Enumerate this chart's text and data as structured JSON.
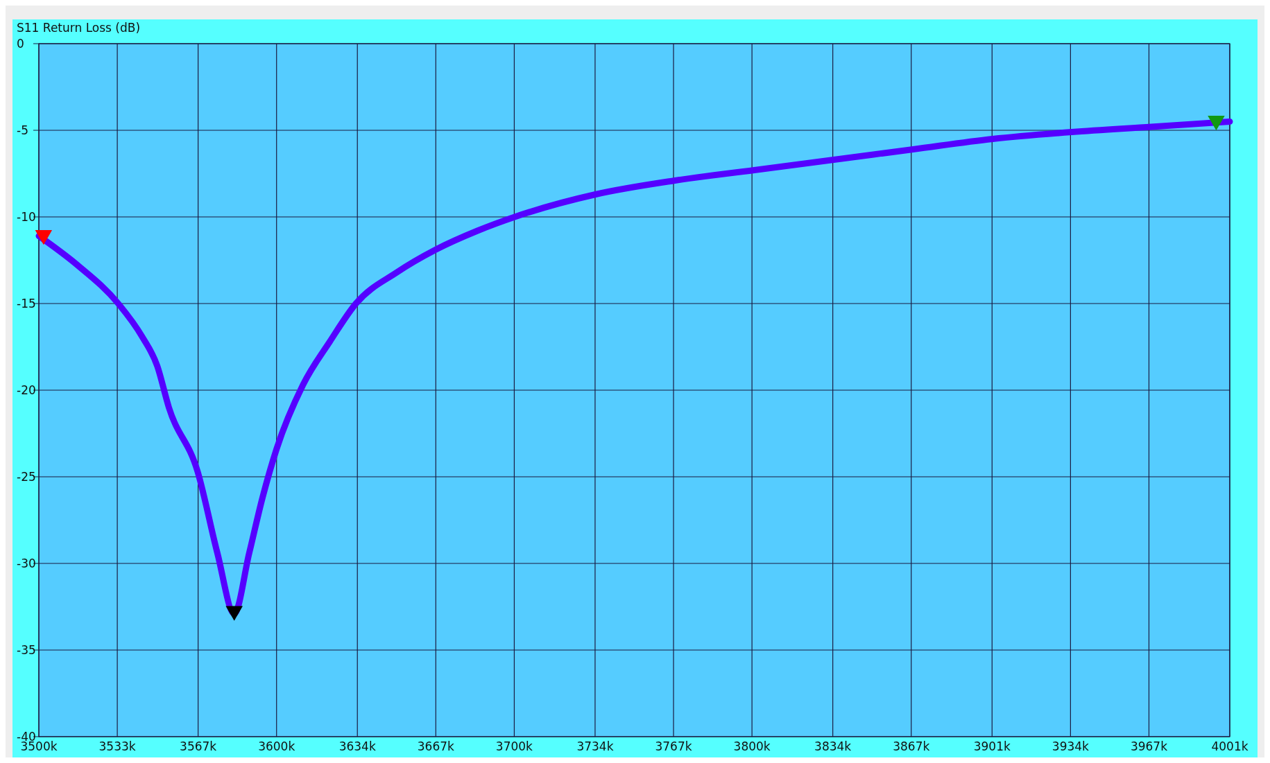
{
  "chart_data": {
    "type": "line",
    "title": "S11 Return Loss (dB)",
    "series": [
      {
        "color": "#5500ff",
        "x": [
          3500,
          3516.4,
          3533.4,
          3543.4,
          3549.8,
          3554.7,
          3566.8,
          3575.1,
          3582.2,
          3588.5,
          3594.1,
          3600,
          3611.1,
          3622.4,
          3633.4,
          3650.6,
          3666.8,
          3684.5,
          3700.2,
          3734.2,
          3767.6,
          3801,
          3834.4,
          3867.8,
          3901.2,
          3934.6,
          3968,
          4001
        ],
        "values": [
          -11.1,
          -12.8,
          -15.0,
          -16.9,
          -18.6,
          -21.0,
          -24.7,
          -29.4,
          -32.9,
          -29.4,
          -26.2,
          -23.4,
          -19.7,
          -17.2,
          -15.0,
          -13.2,
          -11.9,
          -10.8,
          -10.0,
          -8.7,
          -7.9,
          -7.3,
          -6.7,
          -6.1,
          -5.5,
          -5.1,
          -4.8,
          -4.5
        ]
      },
      {
        "type": "scatter",
        "marker": "triangle",
        "x": [
          3502,
          3582.2,
          3995.3
        ],
        "values": [
          -11.2,
          -32.9,
          -4.6
        ],
        "colors": [
          "#ff0000",
          "#000000",
          "#119911"
        ]
      }
    ],
    "line_style": "solid",
    "grid": true,
    "xlim": [
      3500,
      4001
    ],
    "ylim": [
      -40,
      0
    ],
    "xticks": [
      {
        "value": 3500,
        "label": "3500k"
      },
      {
        "value": 3533,
        "label": "3533k"
      },
      {
        "value": 3567,
        "label": "3567k"
      },
      {
        "value": 3600,
        "label": "3600k"
      },
      {
        "value": 3634,
        "label": "3634k"
      },
      {
        "value": 3667,
        "label": "3667k"
      },
      {
        "value": 3700,
        "label": "3700k"
      },
      {
        "value": 3734,
        "label": "3734k"
      },
      {
        "value": 3767,
        "label": "3767k"
      },
      {
        "value": 3800,
        "label": "3800k"
      },
      {
        "value": 3834,
        "label": "3834k"
      },
      {
        "value": 3867,
        "label": "3867k"
      },
      {
        "value": 3901,
        "label": "3901k"
      },
      {
        "value": 3934,
        "label": "3934k"
      },
      {
        "value": 3967,
        "label": "3967k"
      },
      {
        "value": 4001,
        "label": "4001k"
      }
    ],
    "yticks": [
      0,
      -5,
      -10,
      -15,
      -20,
      -25,
      -30,
      -35,
      -40
    ]
  }
}
